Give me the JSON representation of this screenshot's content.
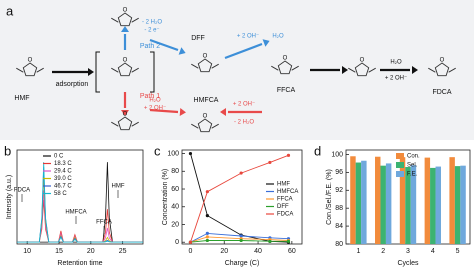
{
  "scheme": {
    "label": "a",
    "texts": [
      "HMF",
      "adsorption",
      "Path 2",
      "Path 1",
      "- 2 H₂O",
      "- 2 e⁻",
      "DFF",
      "+ 2 OH⁻",
      "H₂O",
      "FFCA",
      "H₂O",
      "+ 2 OH⁻",
      "HMFCA",
      "+ 2 OH⁻",
      "- 2 H₂O",
      "H₂O",
      "+ 2 OH⁻",
      "FDCA"
    ]
  },
  "chart_data": [
    {
      "type": "line",
      "panel": "b",
      "x_label": "Retention time",
      "y_label": "Intensity (a.u.)",
      "x": [
        8.4,
        11.9,
        12.3,
        12.6,
        12.9,
        13.4,
        14.9,
        15.3,
        15.7,
        17.1,
        17.5,
        17.9,
        21.9,
        22.3,
        22.6,
        22.9,
        23.4,
        28.2
      ],
      "xlim": [
        8.4,
        28.2
      ],
      "xticks": [
        10,
        15,
        20,
        25
      ],
      "ylim": [
        0,
        1
      ],
      "legend": "upper left",
      "annotations": [
        "FDCA",
        "HMFCA",
        "FFCA",
        "HMF"
      ],
      "series": [
        {
          "name": "0 C",
          "color": "#111111",
          "values": [
            0.02,
            0.02,
            0.02,
            0.02,
            0.02,
            0.02,
            0.02,
            0.02,
            0.02,
            0.02,
            0.02,
            0.02,
            0.02,
            0.28,
            0.87,
            0.28,
            0.02,
            0.02
          ]
        },
        {
          "name": "18.3 C",
          "color": "#e53935",
          "values": [
            0.02,
            0.02,
            0.155,
            0.47,
            0.155,
            0.02,
            0.02,
            0.14,
            0.02,
            0.02,
            0.1,
            0.02,
            0.02,
            0.125,
            0.37,
            0.125,
            0.02,
            0.02
          ]
        },
        {
          "name": "29.4 C",
          "color": "#e055c8",
          "values": [
            0.02,
            0.02,
            0.185,
            0.57,
            0.185,
            0.02,
            0.02,
            0.11,
            0.02,
            0.02,
            0.08,
            0.02,
            0.02,
            0.065,
            0.17,
            0.065,
            0.02,
            0.02
          ]
        },
        {
          "name": "39.0 C",
          "color": "#c9b800",
          "values": [
            0.02,
            0.02,
            0.23,
            0.72,
            0.23,
            0.02,
            0.02,
            0.09,
            0.02,
            0.02,
            0.07,
            0.02,
            0.02,
            0.035,
            0.07,
            0.035,
            0.02,
            0.02
          ]
        },
        {
          "name": "46.7 C",
          "color": "#3a5fcd",
          "values": [
            0.02,
            0.02,
            0.26,
            0.82,
            0.26,
            0.02,
            0.02,
            0.08,
            0.02,
            0.02,
            0.06,
            0.02,
            0.02,
            0.026,
            0.04,
            0.026,
            0.02,
            0.02
          ]
        },
        {
          "name": "58 C",
          "color": "#17b8d0",
          "values": [
            0.02,
            0.02,
            0.275,
            0.87,
            0.275,
            0.02,
            0.02,
            0.07,
            0.02,
            0.02,
            0.05,
            0.02,
            0.02,
            0.023,
            0.03,
            0.023,
            0.02,
            0.02
          ]
        }
      ]
    },
    {
      "type": "line",
      "panel": "c",
      "x_label": "Charge (C)",
      "y_label": "Concentration (%)",
      "x": [
        0,
        10,
        30,
        47,
        58
      ],
      "xlim": [
        -5,
        66
      ],
      "xticks": [
        0,
        20,
        40,
        60
      ],
      "ylim": [
        -2,
        104
      ],
      "yticks": [
        0,
        20,
        40,
        60,
        80,
        100
      ],
      "markers": true,
      "legend": "center right",
      "series": [
        {
          "name": "HMF",
          "color": "#111111",
          "values": [
            100,
            30,
            8,
            1,
            0
          ]
        },
        {
          "name": "HMFCA",
          "color": "#3b6fd8",
          "values": [
            0,
            10,
            7,
            5,
            4
          ]
        },
        {
          "name": "FFCA",
          "color": "#ff9933",
          "values": [
            0,
            6,
            4,
            3,
            2
          ]
        },
        {
          "name": "DFF",
          "color": "#2ca02c",
          "values": [
            0,
            2,
            2,
            1,
            1
          ]
        },
        {
          "name": "FDCA",
          "color": "#e8473c",
          "values": [
            0,
            57,
            78,
            90,
            98
          ]
        }
      ]
    },
    {
      "type": "bar",
      "panel": "d",
      "x_label": "Cycles",
      "y_label": "Con./Sel./F.E. (%)",
      "categories": [
        "1",
        "2",
        "3",
        "4",
        "5"
      ],
      "ylim": [
        80,
        101
      ],
      "yticks": [
        80,
        84,
        88,
        92,
        96,
        100
      ],
      "legend": "upper center",
      "series": [
        {
          "name": "Con.",
          "color": "#f28b3c",
          "values": [
            99.6,
            99.5,
            99.4,
            99.3,
            99.4
          ]
        },
        {
          "name": "Sel.",
          "color": "#3cb371",
          "values": [
            98.2,
            97.5,
            97.2,
            97.0,
            97.4
          ]
        },
        {
          "name": "F.E.",
          "color": "#6fa8dc",
          "values": [
            98.6,
            98.0,
            97.6,
            97.3,
            97.5
          ]
        }
      ]
    }
  ]
}
